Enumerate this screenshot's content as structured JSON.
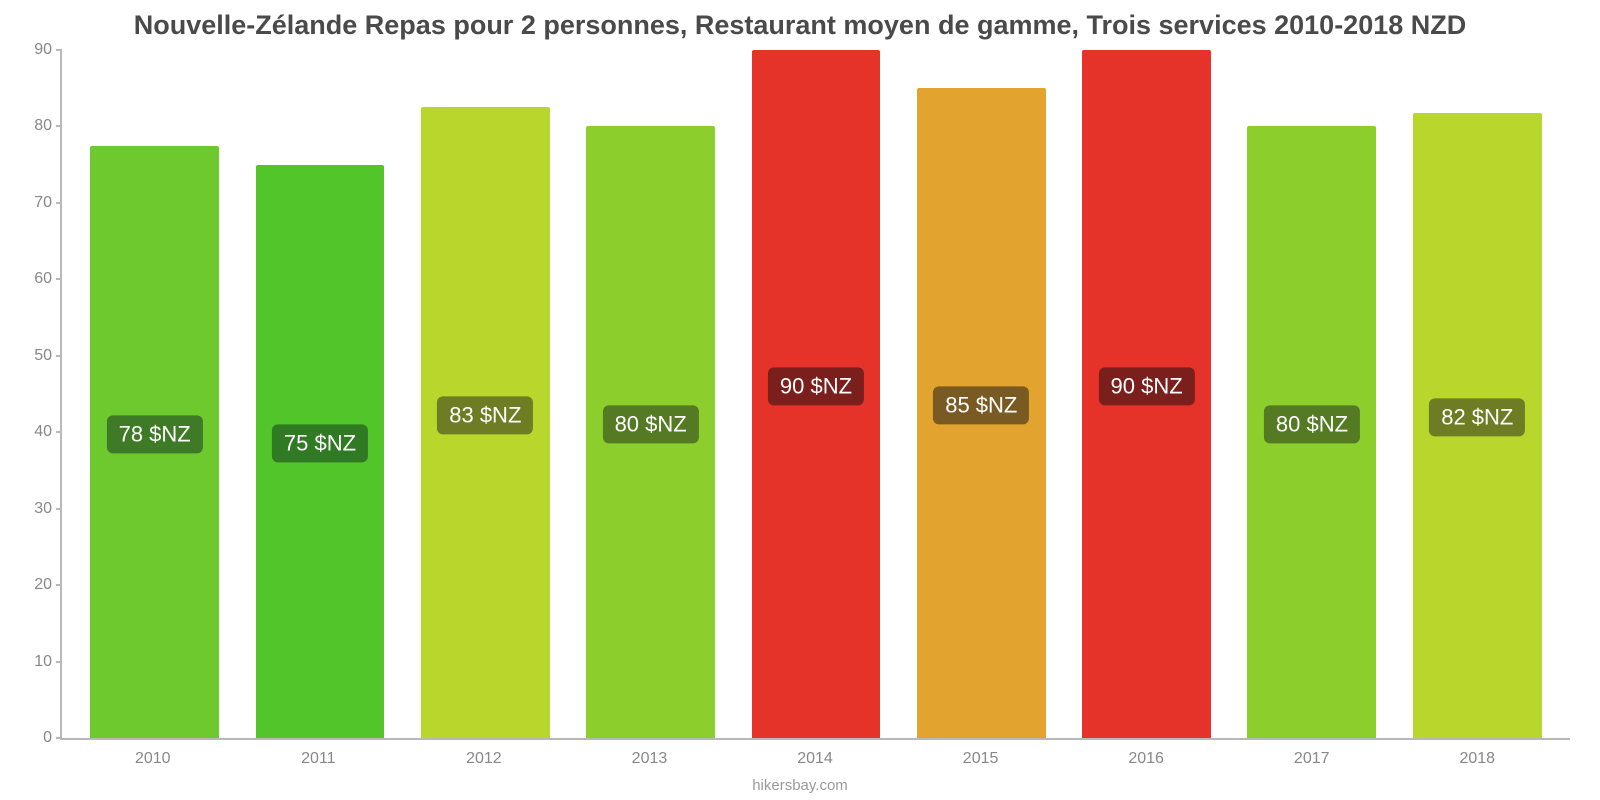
{
  "chart": {
    "type": "bar",
    "title": "Nouvelle-Zélande Repas pour 2 personnes, Restaurant moyen de gamme, Trois services 2010-2018 NZD",
    "title_fontsize": 27,
    "title_color": "#4a4a4a",
    "attribution": "hikersbay.com",
    "attribution_color": "#9a9a9a",
    "background_color": "#ffffff",
    "axis_color": "#b8b8b8",
    "tick_label_color": "#888888",
    "tick_fontsize": 16,
    "bar_label_fontsize": 22,
    "bar_label_text_color": "#ffffff",
    "bar_width_ratio": 0.78,
    "ylim": [
      0,
      90
    ],
    "ytick_step": 10,
    "yticks": [
      0,
      10,
      20,
      30,
      40,
      50,
      60,
      70,
      80,
      90
    ],
    "categories": [
      "2010",
      "2011",
      "2012",
      "2013",
      "2014",
      "2015",
      "2016",
      "2017",
      "2018"
    ],
    "values": [
      77.5,
      75,
      82.5,
      80,
      90,
      85,
      90,
      80,
      81.8
    ],
    "value_labels": [
      "78 $NZ",
      "75 $NZ",
      "83 $NZ",
      "80 $NZ",
      "90 $NZ",
      "85 $NZ",
      "90 $NZ",
      "80 $NZ",
      "82 $NZ"
    ],
    "bar_colors": [
      "#6ec92f",
      "#52c52a",
      "#b9d62c",
      "#8ccf2c",
      "#e6332a",
      "#e3a42f",
      "#e6332a",
      "#8ccf2c",
      "#b9d62c"
    ],
    "label_bg_colors": [
      "#3f7a27",
      "#2f7a22",
      "#6e7d23",
      "#547a24",
      "#7a1f1c",
      "#7a5a23",
      "#7a1f1c",
      "#547a24",
      "#6e7d23"
    ]
  }
}
